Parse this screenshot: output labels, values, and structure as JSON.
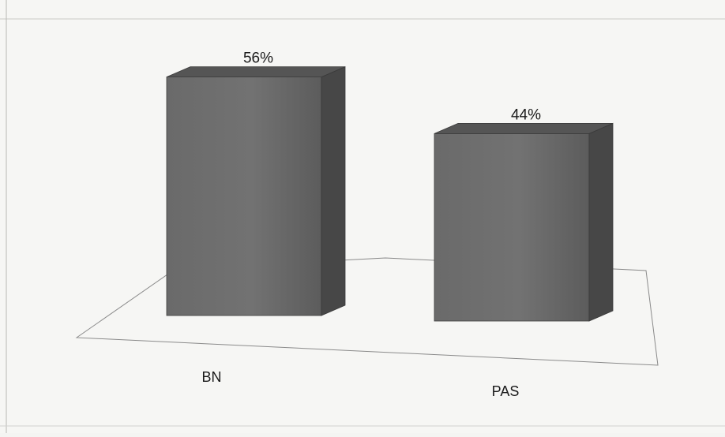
{
  "chart_data": {
    "type": "bar",
    "style": "3d-column",
    "categories": [
      "BN",
      "PAS"
    ],
    "values": [
      56,
      44
    ],
    "data_labels": [
      "56%",
      "44%"
    ],
    "ylim": [
      0,
      60
    ],
    "grid": false,
    "legend": "none",
    "colors": {
      "bar_front": "#6d6d6d",
      "bar_side": "#474747",
      "bar_top": "#555555",
      "floor_stroke": "#8a8a8a",
      "background": "#f6f6f4",
      "text": "#1a1a1a"
    }
  }
}
